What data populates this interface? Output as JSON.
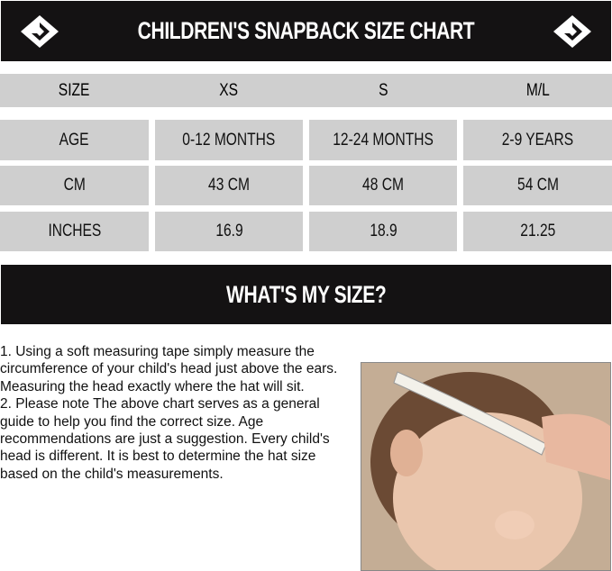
{
  "header": {
    "title": "CHILDREN'S SNAPBACK SIZE CHART",
    "logo_icon": "brand-diamond-logo"
  },
  "table": {
    "columns": [
      "SIZE",
      "XS",
      "S",
      "M/L"
    ],
    "rows": [
      {
        "label": "AGE",
        "values": [
          "0-12 MONTHS",
          "12-24 MONTHS",
          "2-9 YEARS"
        ]
      },
      {
        "label": "CM",
        "values": [
          "43 CM",
          "48 CM",
          "54 CM"
        ]
      },
      {
        "label": "INCHES",
        "values": [
          "16.9",
          "18.9",
          "21.25"
        ]
      }
    ]
  },
  "section": {
    "title": "WHAT'S MY SIZE?"
  },
  "instructions": [
    "1.  Using a soft measuring tape simply measure the circumference of your child's head just above the ears. Measuring the head exactly where the hat will sit.",
    "2.  Please note The above chart serves as a general guide to help you find the correct size. Age recommendations are just a suggestion. Every child's head is different. It is best to determine the hat size based on the child's measurements."
  ],
  "colors": {
    "banner": "#141213",
    "cell": "#cfcfcf"
  }
}
